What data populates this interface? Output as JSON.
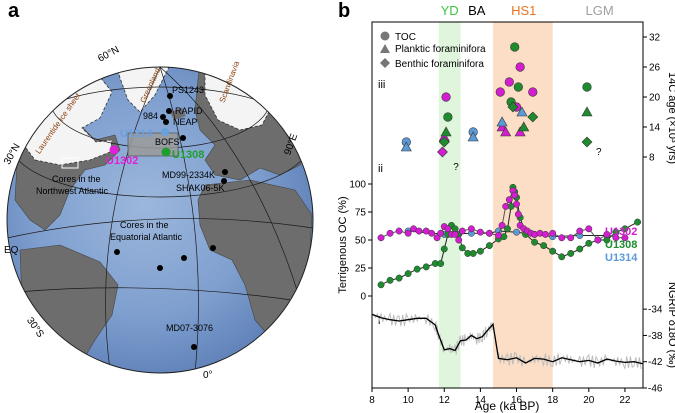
{
  "panel_a": {
    "letter": "a",
    "globe_labels": {
      "lat_60n": "60°N",
      "lat_30n": "30°N",
      "eq": "EQ",
      "lat_30s": "30°S",
      "lon_90e": "90°E",
      "lon_0": "0°",
      "laurentide": "Laurentide ice sheet",
      "greenland": "Greenland",
      "scandinavia": "Scandinavia"
    },
    "sites": {
      "ps1243": "PS1243",
      "rapid": "RAPID",
      "neap": "NEAP",
      "s984": "984",
      "bofs": "BOFS",
      "u1314": "U1314",
      "u1302": "U1302",
      "u1308": "U1308",
      "md99": "MD99-2334K",
      "shak": "SHAK06-5K",
      "md07": "MD07-3076"
    },
    "region_labels": {
      "nw_atlantic_1": "Cores in the",
      "nw_atlantic_2": "Northwest Atlantic",
      "eq_atlantic_1": "Cores in the",
      "eq_atlantic_2": "Equatorial Atlantic"
    }
  },
  "panel_b": {
    "letter": "b",
    "periods": [
      "YD",
      "BA",
      "HS1",
      "LGM"
    ],
    "period_colors": {
      "YD": "#3ec43e",
      "BA": "#000000",
      "HS1": "#e8731d",
      "LGM": "#a0a0a0"
    },
    "roman": {
      "iii": "iii",
      "ii": "ii",
      "i": "i"
    },
    "legend": [
      "TOC",
      "Planktic foraminifora",
      "Benthic foraminifora"
    ],
    "series_labels": {
      "u1302": "U1302",
      "u1308": "U1308",
      "u1314": "U1314"
    },
    "series_colors": {
      "u1302": "#d21ecf",
      "u1308": "#1e8c2e",
      "u1314": "#5b9ad6"
    },
    "question_marks": [
      "?",
      "?"
    ],
    "axes": {
      "xlabel": "Age (ka BP)",
      "ylabel_left": "Terrigenous OC (%)",
      "ylabel_right_top": "14C age (×10³ yrs)",
      "ylabel_right_bottom": "NGRIP δ18O (‰)",
      "x_ticks": [
        "8",
        "10",
        "12",
        "14",
        "16",
        "18",
        "20",
        "22"
      ],
      "left_ticks": [
        "0",
        "25",
        "50",
        "75",
        "100"
      ],
      "right_top_ticks": [
        "8",
        "14",
        "20",
        "26",
        "32"
      ],
      "right_bottom_ticks": [
        "-34",
        "-38",
        "-42",
        "-46"
      ]
    }
  },
  "chart_data": {
    "type": "line",
    "title": "",
    "xlabel": "Age (ka BP)",
    "xlim": [
      8,
      23
    ],
    "shaded_intervals": [
      {
        "name": "YD",
        "range": [
          11.7,
          12.9
        ]
      },
      {
        "name": "HS1",
        "range": [
          14.7,
          18.0
        ]
      }
    ],
    "terrigenous_oc": {
      "ylabel": "Terrigenous OC (%)",
      "ylim": [
        0,
        100
      ],
      "series": [
        {
          "name": "U1302",
          "x": [
            8.5,
            9.0,
            9.5,
            10.0,
            10.3,
            10.6,
            11.0,
            11.3,
            11.6,
            11.8,
            12.0,
            12.2,
            12.4,
            12.6,
            12.8,
            13.0,
            13.5,
            14.0,
            14.5,
            15.0,
            15.2,
            15.4,
            15.6,
            15.8,
            15.9,
            16.0,
            16.1,
            16.2,
            16.4,
            16.6,
            16.8,
            17.0,
            17.3,
            17.6,
            18.0,
            18.5,
            19.0,
            19.5,
            20.0,
            20.5,
            21.0,
            21.5,
            22.0
          ],
          "values": [
            52,
            56,
            58,
            56,
            60,
            58,
            58,
            56,
            52,
            56,
            62,
            60,
            55,
            55,
            50,
            58,
            60,
            57,
            56,
            54,
            63,
            80,
            86,
            94,
            90,
            82,
            73,
            63,
            60,
            58,
            56,
            55,
            56,
            55,
            56,
            52,
            52,
            58,
            60,
            50,
            55,
            52,
            52
          ]
        },
        {
          "name": "U1308",
          "x": [
            8.5,
            9.0,
            9.5,
            10.0,
            10.5,
            11.0,
            11.5,
            11.8,
            12.0,
            12.2,
            12.4,
            12.6,
            12.8,
            13.0,
            13.3,
            13.6,
            14.0,
            14.5,
            15.0,
            15.3,
            15.5,
            15.7,
            15.8,
            15.9,
            16.0,
            16.2,
            16.5,
            17.0,
            17.5,
            18.0,
            18.5,
            19.0,
            19.5,
            20.0,
            20.5,
            21.0,
            21.5,
            22.0,
            22.7
          ],
          "values": [
            10,
            14,
            16,
            20,
            24,
            26,
            29,
            29,
            42,
            55,
            63,
            60,
            55,
            43,
            38,
            38,
            40,
            45,
            51,
            53,
            60,
            80,
            97,
            93,
            88,
            70,
            55,
            48,
            45,
            40,
            35,
            38,
            42,
            47,
            50,
            50,
            57,
            60,
            66
          ]
        },
        {
          "name": "U1314",
          "x": [
            10.0,
            12.0,
            13.5,
            14.5,
            15.0,
            16.0,
            17.0,
            18.0,
            19.5,
            21.0
          ],
          "values": [
            58,
            55,
            56,
            56,
            58,
            57,
            55,
            53,
            54,
            54
          ]
        }
      ]
    },
    "c14_age": {
      "ylabel": "14C age (×10³ yrs)",
      "ylim": [
        5,
        35
      ],
      "points": [
        {
          "core": "U1302",
          "type": "TOC",
          "x": 12.1,
          "y": 20
        },
        {
          "core": "U1302",
          "type": "Planktic",
          "x": 12.0,
          "y": 12
        },
        {
          "core": "U1302",
          "type": "Benthic",
          "x": 11.9,
          "y": 9
        },
        {
          "core": "U1302",
          "type": "TOC",
          "x": 15.1,
          "y": 21
        },
        {
          "core": "U1302",
          "type": "TOC",
          "x": 15.6,
          "y": 23
        },
        {
          "core": "U1302",
          "type": "TOC",
          "x": 16.2,
          "y": 26
        },
        {
          "core": "U1302",
          "type": "TOC",
          "x": 16.0,
          "y": 18
        },
        {
          "core": "U1302",
          "type": "Planktic",
          "x": 15.2,
          "y": 14
        },
        {
          "core": "U1302",
          "type": "Planktic",
          "x": 15.4,
          "y": 13
        },
        {
          "core": "U1302",
          "type": "Planktic",
          "x": 16.2,
          "y": 13
        },
        {
          "core": "U1302",
          "type": "TOC",
          "x": 16.9,
          "y": 21
        },
        {
          "core": "U1308",
          "type": "TOC",
          "x": 12.2,
          "y": 16
        },
        {
          "core": "U1308",
          "type": "Planktic",
          "x": 12.1,
          "y": 13
        },
        {
          "core": "U1308",
          "type": "Benthic",
          "x": 12.0,
          "y": 11
        },
        {
          "core": "U1308",
          "type": "TOC",
          "x": 15.9,
          "y": 30
        },
        {
          "core": "U1308",
          "type": "TOC",
          "x": 16.1,
          "y": 22
        },
        {
          "core": "U1308",
          "type": "TOC",
          "x": 15.7,
          "y": 19
        },
        {
          "core": "U1308",
          "type": "Benthic",
          "x": 15.8,
          "y": 18
        },
        {
          "core": "U1308",
          "type": "Planktic",
          "x": 16.4,
          "y": 14
        },
        {
          "core": "U1308",
          "type": "Benthic",
          "x": 16.9,
          "y": 16
        },
        {
          "core": "U1308",
          "type": "TOC",
          "x": 19.9,
          "y": 22
        },
        {
          "core": "U1308",
          "type": "Planktic",
          "x": 19.9,
          "y": 17
        },
        {
          "core": "U1308",
          "type": "Benthic",
          "x": 19.9,
          "y": 11
        },
        {
          "core": "U1314",
          "type": "TOC",
          "x": 9.9,
          "y": 11
        },
        {
          "core": "U1314",
          "type": "Planktic",
          "x": 9.9,
          "y": 10
        },
        {
          "core": "U1314",
          "type": "TOC",
          "x": 13.6,
          "y": 13
        },
        {
          "core": "U1314",
          "type": "Planktic",
          "x": 13.6,
          "y": 12
        },
        {
          "core": "U1314",
          "type": "Planktic",
          "x": 15.2,
          "y": 15
        },
        {
          "core": "U1314",
          "type": "Planktic",
          "x": 16.3,
          "y": 17
        }
      ]
    },
    "ngrip_d18o": {
      "ylabel": "NGRIP δ18O (‰)",
      "ylim": [
        -46,
        -32
      ],
      "x": [
        8.0,
        8.5,
        9.0,
        9.5,
        10.0,
        10.5,
        11.0,
        11.5,
        11.7,
        12.0,
        12.3,
        12.6,
        12.9,
        13.2,
        13.5,
        13.8,
        14.1,
        14.4,
        14.7,
        15.0,
        15.5,
        16.0,
        16.5,
        17.0,
        17.5,
        18.0,
        18.5,
        19.0,
        19.5,
        20.0,
        20.5,
        21.0,
        21.5,
        22.0,
        22.5,
        23.0
      ],
      "values": [
        -34.8,
        -35.3,
        -35.6,
        -35.8,
        -35.6,
        -35.4,
        -35.4,
        -36.4,
        -38.0,
        -40.2,
        -40.0,
        -40.3,
        -38.8,
        -38.7,
        -38.0,
        -38.5,
        -38.2,
        -37.2,
        -36.3,
        -41.5,
        -41.7,
        -41.4,
        -42.2,
        -41.5,
        -41.6,
        -42.0,
        -41.4,
        -41.7,
        -42.0,
        -41.8,
        -42.2,
        -41.6,
        -41.9,
        -42.1,
        -42.0,
        -42.3
      ]
    }
  }
}
